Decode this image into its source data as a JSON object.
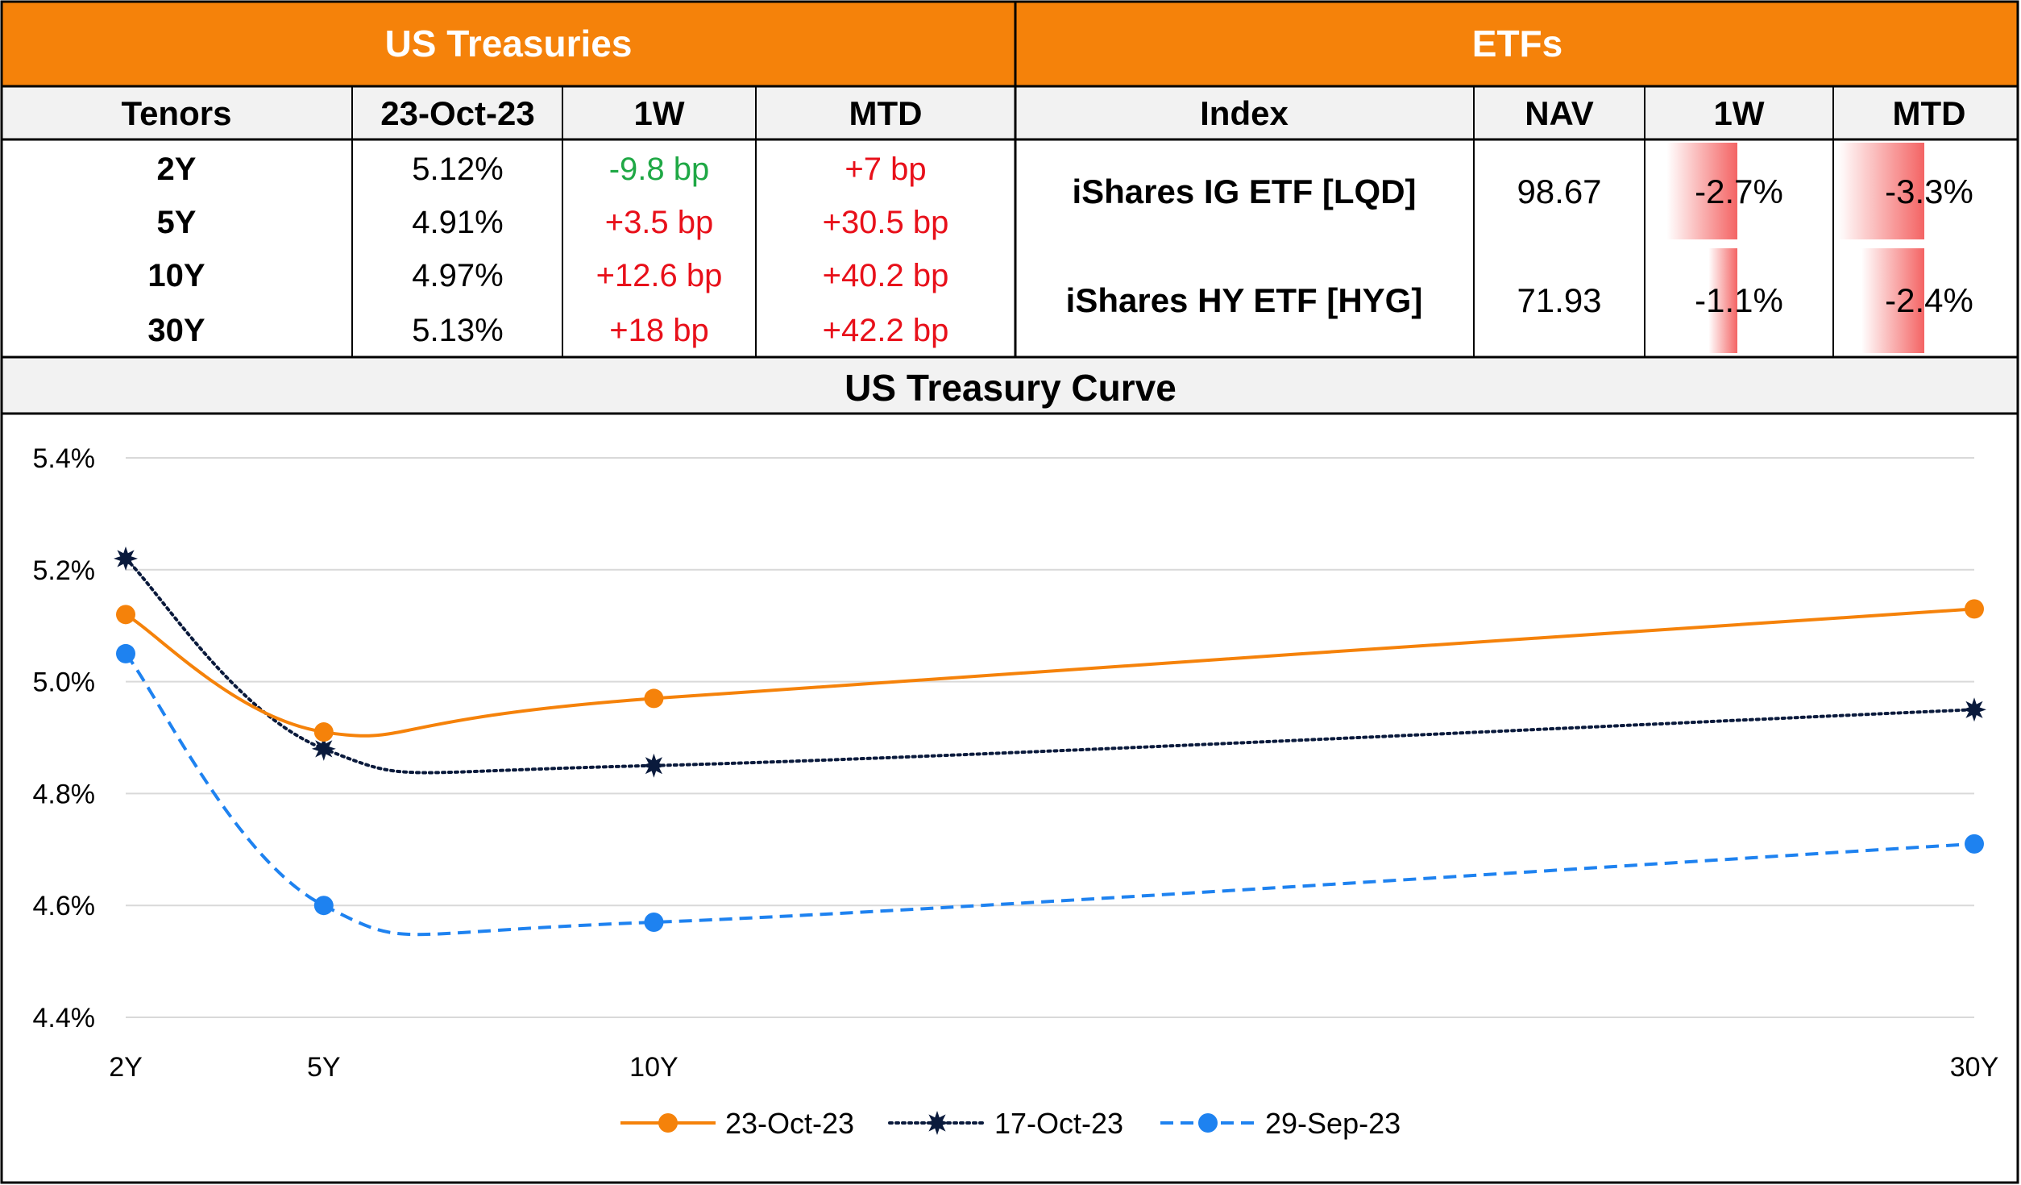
{
  "treasuries": {
    "title": "US Treasuries",
    "headers": [
      "Tenors",
      "23-Oct-23",
      "1W",
      "MTD"
    ],
    "rows": [
      {
        "tenor": "2Y",
        "yield": "5.12%",
        "w1": "-9.8 bp",
        "mtd": "+7 bp"
      },
      {
        "tenor": "5Y",
        "yield": "4.91%",
        "w1": "+3.5 bp",
        "mtd": "+30.5 bp"
      },
      {
        "tenor": "10Y",
        "yield": "4.97%",
        "w1": "+12.6 bp",
        "mtd": "+40.2 bp"
      },
      {
        "tenor": "30Y",
        "yield": "5.13%",
        "w1": "+18 bp",
        "mtd": "+42.2 bp"
      }
    ]
  },
  "etfs": {
    "title": "ETFs",
    "headers": [
      "Index",
      "NAV",
      "1W",
      "MTD"
    ],
    "rows": [
      {
        "index": "iShares IG ETF [LQD]",
        "nav": "98.67",
        "w1": "-2.7%",
        "mtd": "-3.3%",
        "w1_value": -2.7,
        "mtd_value": -3.3
      },
      {
        "index": "iShares HY ETF [HYG]",
        "nav": "71.93",
        "w1": "-1.1%",
        "mtd": "-2.4%",
        "w1_value": -1.1,
        "mtd_value": -2.4
      }
    ]
  },
  "colors": {
    "header_orange": "#F5820A",
    "positive_red": "#E8101A",
    "negative_green": "#1FA845",
    "bar_red": "#F46464",
    "series_orange": "#F5820A",
    "series_navy": "#0A1A3C",
    "series_blue": "#1E82F0"
  },
  "chart_data": {
    "type": "line",
    "title": "US Treasury Curve",
    "x_labels": [
      "2Y",
      "5Y",
      "10Y",
      "30Y"
    ],
    "x_years": [
      2,
      5,
      10,
      30
    ],
    "ylim": [
      4.4,
      5.4
    ],
    "yticks": [
      4.4,
      4.6,
      4.8,
      5.0,
      5.2,
      5.4
    ],
    "ytick_labels": [
      "4.4%",
      "4.6%",
      "4.8%",
      "5.0%",
      "5.2%",
      "5.4%"
    ],
    "grid": "horizontal",
    "legend_position": "bottom",
    "series": [
      {
        "name": "23-Oct-23",
        "values": [
          5.12,
          4.91,
          4.97,
          5.13
        ],
        "style": "solid",
        "marker": "circle"
      },
      {
        "name": "17-Oct-23",
        "values": [
          5.22,
          4.88,
          4.85,
          4.95
        ],
        "style": "dotted",
        "marker": "star"
      },
      {
        "name": "29-Sep-23",
        "values": [
          5.05,
          4.6,
          4.57,
          4.71
        ],
        "style": "dashed",
        "marker": "circle"
      }
    ]
  }
}
